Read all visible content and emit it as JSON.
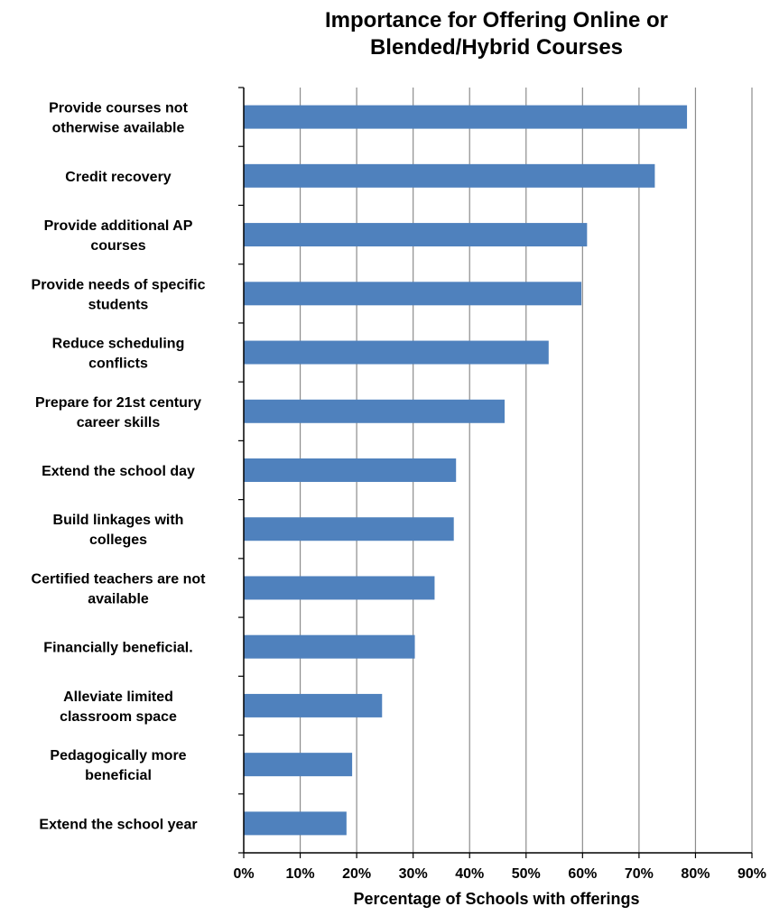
{
  "chart_data": {
    "type": "bar",
    "orientation": "horizontal",
    "title_lines": [
      "Importance for Offering Online or",
      "Blended/Hybrid Courses"
    ],
    "xlabel": "Percentage of Schools with offerings",
    "ylabel": "",
    "xlim": [
      0,
      90
    ],
    "ticks": [
      0,
      10,
      20,
      30,
      40,
      50,
      60,
      70,
      80,
      90
    ],
    "tick_labels": [
      "0%",
      "10%",
      "20%",
      "30%",
      "40%",
      "50%",
      "60%",
      "70%",
      "80%",
      "90%"
    ],
    "grid": true,
    "bar_color": "#4f81bd",
    "grid_color": "#8c8c8c",
    "categories": [
      [
        "Provide courses not",
        "otherwise available"
      ],
      [
        "Credit recovery"
      ],
      [
        "Provide additional AP",
        "courses"
      ],
      [
        "Provide needs of specific",
        "students"
      ],
      [
        "Reduce scheduling",
        "conflicts"
      ],
      [
        "Prepare  for 21st century",
        "career skills"
      ],
      [
        "Extend the school day"
      ],
      [
        "Build linkages with",
        "colleges"
      ],
      [
        "Certified teachers are not",
        "available"
      ],
      [
        "Financially beneficial."
      ],
      [
        "Alleviate limited",
        "classroom space"
      ],
      [
        "Pedagogically more",
        "beneficial"
      ],
      [
        "Extend the school year"
      ]
    ],
    "values": [
      78.5,
      72.8,
      60.8,
      59.8,
      54.0,
      46.2,
      37.6,
      37.2,
      33.8,
      30.3,
      24.5,
      19.2,
      18.2
    ]
  }
}
